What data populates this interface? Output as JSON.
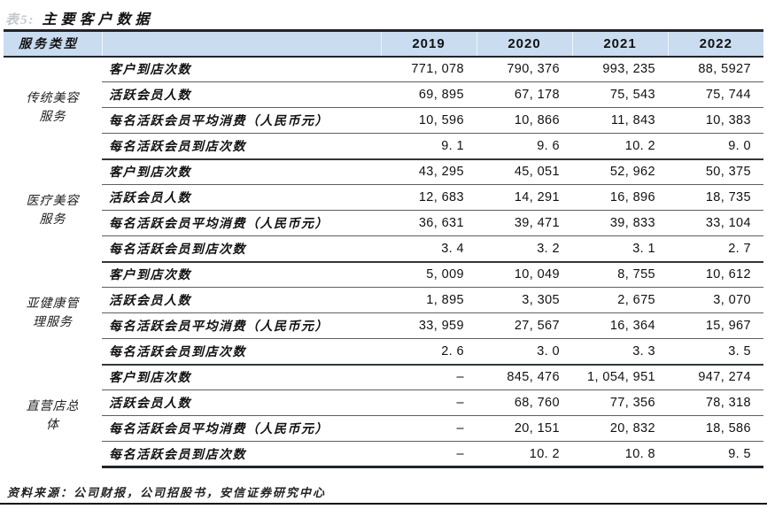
{
  "title_prefix": "表5:",
  "title": "主要客户数据",
  "colors": {
    "header_band": "#C9DCF0",
    "dark_border": "#20242B"
  },
  "table": {
    "service_type_header": "服务类型",
    "years": [
      "2019",
      "2020",
      "2021",
      "2022"
    ],
    "groups": [
      {
        "name": "传统美容服务",
        "rows": [
          {
            "label": "客户到店次数",
            "values": [
              "771, 078",
              "790, 376",
              "993, 235",
              "88, 5927"
            ]
          },
          {
            "label": "活跃会员人数",
            "values": [
              "69, 895",
              "67, 178",
              "75, 543",
              "75, 744"
            ]
          },
          {
            "label": "每名活跃会员平均消费（人民币元）",
            "values": [
              "10, 596",
              "10, 866",
              "11, 843",
              "10, 383"
            ]
          },
          {
            "label": "每名活跃会员到店次数",
            "values": [
              "9. 1",
              "9. 6",
              "10. 2",
              "9. 0"
            ]
          }
        ]
      },
      {
        "name": "医疗美容服务",
        "rows": [
          {
            "label": "客户到店次数",
            "values": [
              "43, 295",
              "45, 051",
              "52, 962",
              "50, 375"
            ]
          },
          {
            "label": "活跃会员人数",
            "values": [
              "12, 683",
              "14, 291",
              "16, 896",
              "18, 735"
            ]
          },
          {
            "label": "每名活跃会员平均消费（人民币元）",
            "values": [
              "36, 631",
              "39, 471",
              "39, 833",
              "33, 104"
            ]
          },
          {
            "label": "每名活跃会员到店次数",
            "values": [
              "3. 4",
              "3. 2",
              "3. 1",
              "2. 7"
            ]
          }
        ]
      },
      {
        "name": "亚健康管理服务",
        "rows": [
          {
            "label": "客户到店次数",
            "values": [
              "5, 009",
              "10, 049",
              "8, 755",
              "10, 612"
            ]
          },
          {
            "label": "活跃会员人数",
            "values": [
              "1, 895",
              "3, 305",
              "2, 675",
              "3, 070"
            ]
          },
          {
            "label": "每名活跃会员平均消费（人民币元）",
            "values": [
              "33, 959",
              "27, 567",
              "16, 364",
              "15, 967"
            ]
          },
          {
            "label": "每名活跃会员到店次数",
            "values": [
              "2. 6",
              "3. 0",
              "3. 3",
              "3. 5"
            ]
          }
        ]
      },
      {
        "name": "直营店总体",
        "rows": [
          {
            "label": "客户到店次数",
            "values": [
              "–",
              "845, 476",
              "1, 054, 951",
              "947, 274"
            ]
          },
          {
            "label": "活跃会员人数",
            "values": [
              "–",
              "68, 760",
              "77, 356",
              "78, 318"
            ]
          },
          {
            "label": "每名活跃会员平均消费（人民币元）",
            "values": [
              "–",
              "20, 151",
              "20, 832",
              "18, 586"
            ]
          },
          {
            "label": "每名活跃会员到店次数",
            "values": [
              "–",
              "10. 2",
              "10. 8",
              "9. 5"
            ]
          }
        ]
      }
    ]
  },
  "source": "资料来源：公司财报，公司招股书，安信证券研究中心"
}
